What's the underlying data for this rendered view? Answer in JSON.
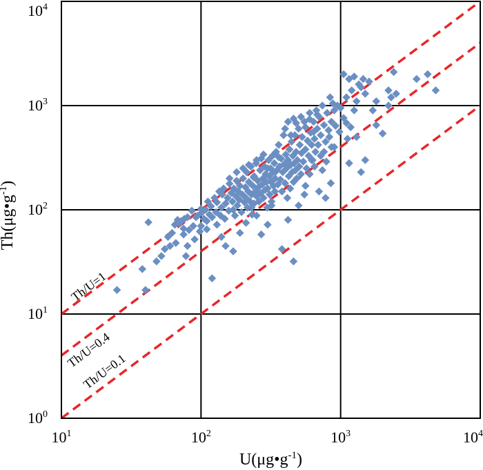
{
  "chart_data": {
    "type": "scatter",
    "title": "",
    "xlabel": "U(μg•g-1)",
    "ylabel": "Th(μg•g-1)",
    "xscale": "log",
    "yscale": "log",
    "xlim": [
      10,
      10000
    ],
    "ylim": [
      1,
      10000
    ],
    "grid": true,
    "marker": "diamond",
    "colors": {
      "points": "#6B8FC2",
      "reference": "#E8262A",
      "grid": "#000000"
    },
    "x_ticks": [
      {
        "base": "10",
        "exp": "1",
        "value": 10
      },
      {
        "base": "10",
        "exp": "2",
        "value": 100
      },
      {
        "base": "10",
        "exp": "3",
        "value": 1000
      },
      {
        "base": "10",
        "exp": "4",
        "value": 10000
      }
    ],
    "y_ticks": [
      {
        "base": "10",
        "exp": "0",
        "value": 1
      },
      {
        "base": "10",
        "exp": "1",
        "value": 10
      },
      {
        "base": "10",
        "exp": "2",
        "value": 100
      },
      {
        "base": "10",
        "exp": "3",
        "value": 1000
      },
      {
        "base": "10",
        "exp": "4",
        "value": 10000
      }
    ],
    "reference_lines": [
      {
        "label": "Th/U=1",
        "ratio": 1
      },
      {
        "label": "Th/U=0.4",
        "ratio": 0.4
      },
      {
        "label": "Th/U=0.1",
        "ratio": 0.1
      }
    ],
    "points": [
      [
        25,
        17
      ],
      [
        40,
        17
      ],
      [
        38,
        27
      ],
      [
        42,
        76
      ],
      [
        48,
        32
      ],
      [
        52,
        36
      ],
      [
        55,
        42
      ],
      [
        60,
        45
      ],
      [
        58,
        55
      ],
      [
        62,
        60
      ],
      [
        65,
        72
      ],
      [
        70,
        74
      ],
      [
        72,
        78
      ],
      [
        76,
        82
      ],
      [
        80,
        85
      ],
      [
        66,
        48
      ],
      [
        75,
        58
      ],
      [
        78,
        36
      ],
      [
        82,
        64
      ],
      [
        88,
        70
      ],
      [
        90,
        52
      ],
      [
        95,
        88
      ],
      [
        98,
        62
      ],
      [
        100,
        70
      ],
      [
        102,
        95
      ],
      [
        105,
        82
      ],
      [
        108,
        100
      ],
      [
        110,
        78
      ],
      [
        112,
        120
      ],
      [
        115,
        90
      ],
      [
        118,
        108
      ],
      [
        120,
        85
      ],
      [
        125,
        130
      ],
      [
        128,
        95
      ],
      [
        130,
        118
      ],
      [
        135,
        150
      ],
      [
        138,
        88
      ],
      [
        140,
        105
      ],
      [
        142,
        140
      ],
      [
        145,
        160
      ],
      [
        148,
        82
      ],
      [
        150,
        115
      ],
      [
        155,
        130
      ],
      [
        158,
        98
      ],
      [
        160,
        178
      ],
      [
        165,
        145
      ],
      [
        168,
        120
      ],
      [
        170,
        100
      ],
      [
        172,
        160
      ],
      [
        175,
        88
      ],
      [
        178,
        135
      ],
      [
        180,
        190
      ],
      [
        182,
        110
      ],
      [
        185,
        150
      ],
      [
        188,
        125
      ],
      [
        190,
        170
      ],
      [
        195,
        95
      ],
      [
        198,
        140
      ],
      [
        200,
        200
      ],
      [
        205,
        118
      ],
      [
        208,
        165
      ],
      [
        210,
        130
      ],
      [
        212,
        230
      ],
      [
        215,
        105
      ],
      [
        218,
        150
      ],
      [
        220,
        185
      ],
      [
        225,
        120
      ],
      [
        228,
        260
      ],
      [
        230,
        140
      ],
      [
        232,
        90
      ],
      [
        235,
        170
      ],
      [
        238,
        205
      ],
      [
        240,
        115
      ],
      [
        245,
        150
      ],
      [
        248,
        280
      ],
      [
        250,
        135
      ],
      [
        255,
        190
      ],
      [
        258,
        165
      ],
      [
        260,
        120
      ],
      [
        265,
        240
      ],
      [
        268,
        145
      ],
      [
        270,
        310
      ],
      [
        275,
        175
      ],
      [
        278,
        200
      ],
      [
        280,
        130
      ],
      [
        285,
        260
      ],
      [
        288,
        155
      ],
      [
        290,
        220
      ],
      [
        295,
        185
      ],
      [
        298,
        105
      ],
      [
        300,
        160
      ],
      [
        305,
        300
      ],
      [
        308,
        210
      ],
      [
        310,
        140
      ],
      [
        315,
        250
      ],
      [
        318,
        185
      ],
      [
        320,
        120
      ],
      [
        325,
        330
      ],
      [
        328,
        230
      ],
      [
        330,
        170
      ],
      [
        335,
        280
      ],
      [
        338,
        150
      ],
      [
        340,
        200
      ],
      [
        345,
        360
      ],
      [
        350,
        240
      ],
      [
        355,
        175
      ],
      [
        360,
        420
      ],
      [
        365,
        260
      ],
      [
        370,
        195
      ],
      [
        375,
        310
      ],
      [
        380,
        150
      ],
      [
        385,
        230
      ],
      [
        390,
        520
      ],
      [
        395,
        275
      ],
      [
        400,
        180
      ],
      [
        405,
        340
      ],
      [
        410,
        250
      ],
      [
        415,
        130
      ],
      [
        420,
        300
      ],
      [
        425,
        210
      ],
      [
        430,
        380
      ],
      [
        435,
        160
      ],
      [
        440,
        270
      ],
      [
        445,
        450
      ],
      [
        450,
        230
      ],
      [
        455,
        330
      ],
      [
        460,
        185
      ],
      [
        465,
        280
      ],
      [
        470,
        520
      ],
      [
        475,
        240
      ],
      [
        480,
        360
      ],
      [
        485,
        200
      ],
      [
        490,
        300
      ],
      [
        500,
        600
      ],
      [
        505,
        260
      ],
      [
        510,
        420
      ],
      [
        520,
        220
      ],
      [
        525,
        350
      ],
      [
        530,
        500
      ],
      [
        540,
        290
      ],
      [
        550,
        700
      ],
      [
        560,
        380
      ],
      [
        570,
        250
      ],
      [
        580,
        460
      ],
      [
        590,
        330
      ],
      [
        600,
        850
      ],
      [
        610,
        550
      ],
      [
        620,
        420
      ],
      [
        630,
        300
      ],
      [
        640,
        700
      ],
      [
        650,
        480
      ],
      [
        660,
        360
      ],
      [
        670,
        900
      ],
      [
        680,
        600
      ],
      [
        690,
        420
      ],
      [
        700,
        780
      ],
      [
        720,
        520
      ],
      [
        740,
        1000
      ],
      [
        760,
        650
      ],
      [
        780,
        450
      ],
      [
        800,
        850
      ],
      [
        820,
        580
      ],
      [
        840,
        1200
      ],
      [
        860,
        700
      ],
      [
        880,
        1050
      ],
      [
        900,
        900
      ],
      [
        950,
        1000
      ],
      [
        1000,
        950
      ],
      [
        1050,
        2000
      ],
      [
        1100,
        1200
      ],
      [
        1150,
        1800
      ],
      [
        1200,
        1400
      ],
      [
        1250,
        1900
      ],
      [
        1300,
        1100
      ],
      [
        1350,
        1600
      ],
      [
        1400,
        1500
      ],
      [
        1450,
        1800
      ],
      [
        1500,
        1300
      ],
      [
        1600,
        1700
      ],
      [
        1700,
        900
      ],
      [
        1800,
        1100
      ],
      [
        2200,
        1400
      ],
      [
        2300,
        1200
      ],
      [
        2400,
        2100
      ],
      [
        2500,
        1300
      ],
      [
        3500,
        1800
      ],
      [
        4200,
        2000
      ],
      [
        4800,
        1400
      ],
      [
        1100,
        680
      ],
      [
        1150,
        280
      ],
      [
        1300,
        500
      ],
      [
        1400,
        230
      ],
      [
        1500,
        300
      ],
      [
        1800,
        650
      ],
      [
        2000,
        540
      ],
      [
        2200,
        1000
      ],
      [
        1250,
        900
      ],
      [
        900,
        400
      ],
      [
        850,
        180
      ],
      [
        780,
        130
      ],
      [
        620,
        300
      ],
      [
        550,
        140
      ],
      [
        500,
        110
      ],
      [
        460,
        32
      ],
      [
        420,
        80
      ],
      [
        380,
        42
      ],
      [
        320,
        110
      ],
      [
        300,
        72
      ],
      [
        270,
        58
      ],
      [
        250,
        88
      ],
      [
        230,
        105
      ],
      [
        210,
        75
      ],
      [
        190,
        60
      ],
      [
        170,
        40
      ],
      [
        150,
        45
      ],
      [
        120,
        22
      ],
      [
        140,
        55
      ],
      [
        130,
        72
      ],
      [
        110,
        65
      ],
      [
        100,
        102
      ],
      [
        92,
        85
      ],
      [
        86,
        98
      ],
      [
        80,
        45
      ],
      [
        75,
        66
      ],
      [
        68,
        80
      ],
      [
        560,
        170
      ],
      [
        600,
        220
      ],
      [
        650,
        260
      ],
      [
        700,
        150
      ],
      [
        720,
        330
      ],
      [
        740,
        240
      ],
      [
        760,
        360
      ],
      [
        790,
        290
      ],
      [
        830,
        500
      ],
      [
        860,
        400
      ],
      [
        920,
        640
      ],
      [
        980,
        560
      ],
      [
        1050,
        760
      ],
      [
        1120,
        480
      ],
      [
        1180,
        620
      ],
      [
        360,
        320
      ],
      [
        340,
        230
      ],
      [
        300,
        250
      ],
      [
        280,
        340
      ],
      [
        250,
        300
      ],
      [
        240,
        210
      ],
      [
        220,
        270
      ],
      [
        200,
        250
      ],
      [
        180,
        230
      ],
      [
        160,
        200
      ],
      [
        440,
        520
      ],
      [
        480,
        680
      ],
      [
        520,
        780
      ],
      [
        560,
        620
      ],
      [
        600,
        740
      ],
      [
        640,
        560
      ],
      [
        680,
        820
      ],
      [
        400,
        600
      ],
      [
        420,
        700
      ],
      [
        460,
        750
      ]
    ]
  }
}
